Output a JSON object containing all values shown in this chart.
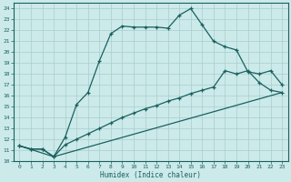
{
  "title": "",
  "xlabel": "Humidex (Indice chaleur)",
  "bg_color": "#cceaea",
  "grid_color": "#aacccc",
  "line_color": "#1a6060",
  "xlim": [
    -0.5,
    23.5
  ],
  "ylim": [
    10,
    24.5
  ],
  "xticks": [
    0,
    1,
    2,
    3,
    4,
    5,
    6,
    7,
    8,
    9,
    10,
    11,
    12,
    13,
    14,
    15,
    16,
    17,
    18,
    19,
    20,
    21,
    22,
    23
  ],
  "yticks": [
    10,
    11,
    12,
    13,
    14,
    15,
    16,
    17,
    18,
    19,
    20,
    21,
    22,
    23,
    24
  ],
  "line1_x": [
    0,
    1,
    2,
    3,
    4,
    5,
    6,
    7,
    8,
    9,
    10,
    11,
    12,
    13,
    14,
    15,
    16,
    17,
    18,
    19,
    20,
    21,
    22,
    23
  ],
  "line1_y": [
    11.4,
    11.1,
    11.1,
    10.4,
    12.2,
    15.2,
    16.3,
    19.2,
    21.7,
    22.4,
    22.3,
    22.3,
    22.3,
    22.2,
    23.4,
    24.0,
    22.5,
    21.0,
    20.5,
    20.2,
    18.2,
    18.0,
    18.3,
    17.0
  ],
  "line2_x": [
    0,
    1,
    2,
    3,
    4,
    5,
    6,
    7,
    8,
    9,
    10,
    11,
    12,
    13,
    14,
    15,
    16,
    17,
    18,
    19,
    20,
    21,
    22,
    23
  ],
  "line2_y": [
    11.4,
    11.1,
    11.1,
    10.4,
    11.5,
    12.0,
    12.5,
    13.0,
    13.5,
    14.0,
    14.4,
    14.8,
    15.1,
    15.5,
    15.8,
    16.2,
    16.5,
    16.8,
    18.3,
    18.0,
    18.3,
    17.2,
    16.5,
    16.3
  ],
  "line3_x": [
    0,
    3,
    23
  ],
  "line3_y": [
    11.4,
    10.4,
    16.3
  ]
}
